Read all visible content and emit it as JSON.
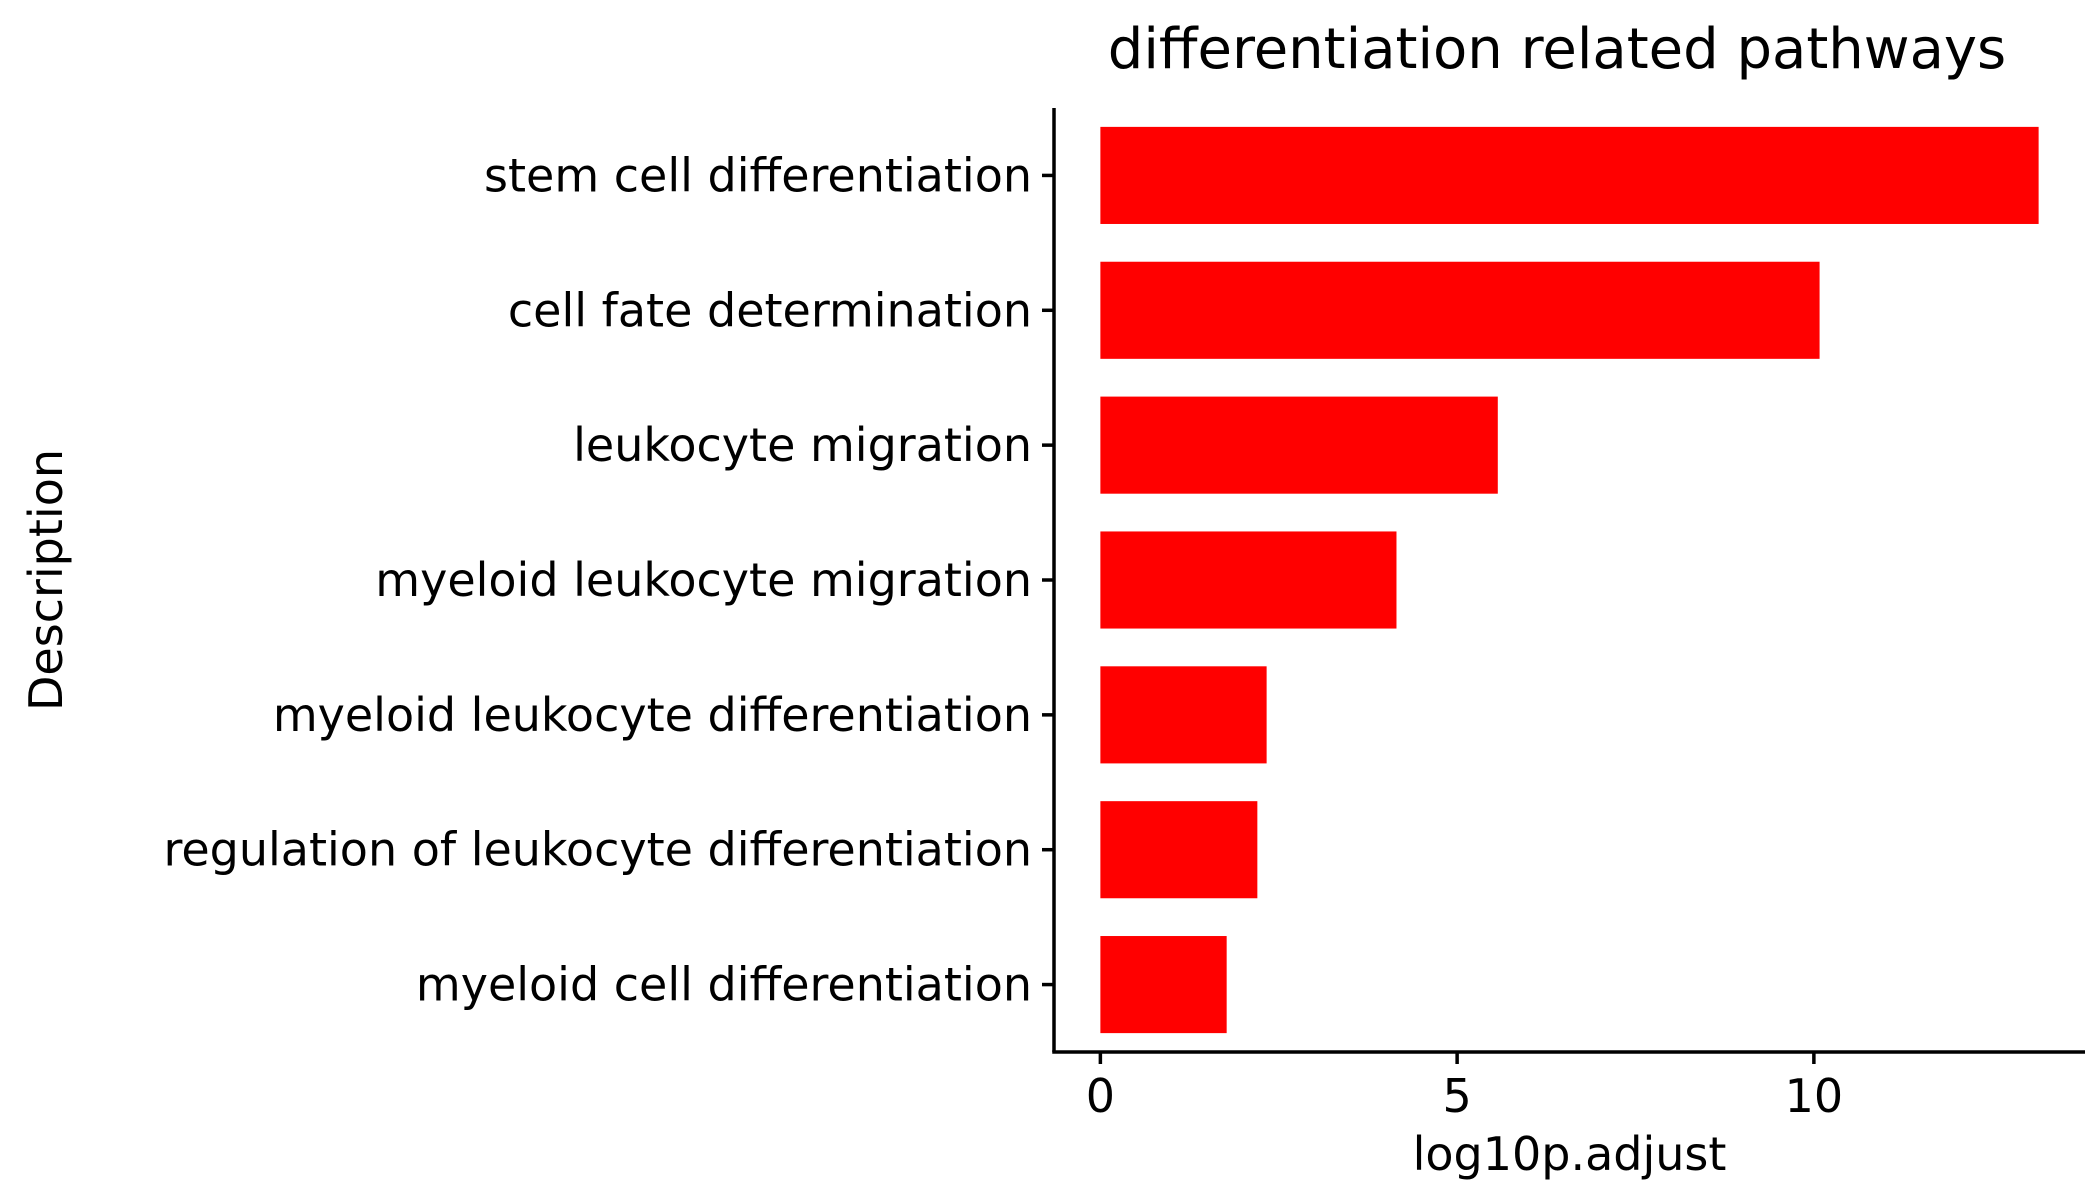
{
  "colors": {
    "bar": "#ff0000",
    "axis": "#000000",
    "background": "#ffffff"
  },
  "chart_data": {
    "type": "bar",
    "orientation": "horizontal",
    "title": "differentiation related pathways",
    "xlabel": "log10p.adjust",
    "ylabel": "Description",
    "categories": [
      "stem cell differentiation",
      "cell fate determination",
      "leukocyte migration",
      "myeloid leukocyte migration",
      "myeloid leukocyte differentiation",
      "regulation of leukocyte differentiation",
      "myeloid cell differentiation"
    ],
    "values": [
      13.15,
      10.08,
      5.57,
      4.15,
      2.33,
      2.2,
      1.77
    ],
    "xlim": [
      -0.65,
      13.8
    ],
    "xticks": [
      0,
      5,
      10
    ],
    "xtick_labels": [
      "0",
      "5",
      "10"
    ],
    "grid": false,
    "legend": "none"
  }
}
